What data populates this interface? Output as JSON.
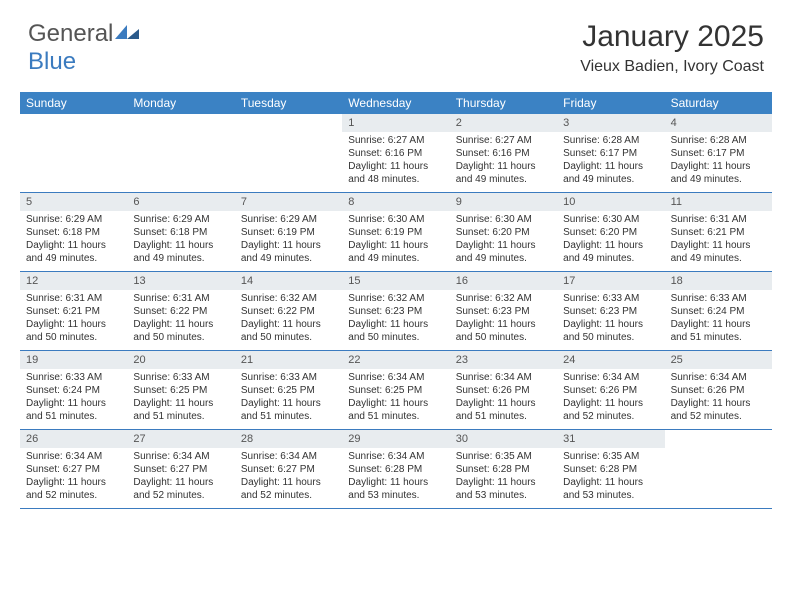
{
  "logo": {
    "textGray": "General",
    "textBlue": "Blue"
  },
  "title": "January 2025",
  "location": "Vieux Badien, Ivory Coast",
  "colors": {
    "headerBg": "#3b82c4",
    "headerText": "#ffffff",
    "cellHeaderBg": "#e8ecef",
    "borderColor": "#3b7bbf",
    "bodyText": "#333333",
    "logoGray": "#555555",
    "logoBlue": "#3b7bbf"
  },
  "dayNames": [
    "Sunday",
    "Monday",
    "Tuesday",
    "Wednesday",
    "Thursday",
    "Friday",
    "Saturday"
  ],
  "weeks": [
    [
      {
        "n": "",
        "empty": true
      },
      {
        "n": "",
        "empty": true
      },
      {
        "n": "",
        "empty": true
      },
      {
        "n": "1",
        "sr": "Sunrise: 6:27 AM",
        "ss": "Sunset: 6:16 PM",
        "d1": "Daylight: 11 hours",
        "d2": "and 48 minutes."
      },
      {
        "n": "2",
        "sr": "Sunrise: 6:27 AM",
        "ss": "Sunset: 6:16 PM",
        "d1": "Daylight: 11 hours",
        "d2": "and 49 minutes."
      },
      {
        "n": "3",
        "sr": "Sunrise: 6:28 AM",
        "ss": "Sunset: 6:17 PM",
        "d1": "Daylight: 11 hours",
        "d2": "and 49 minutes."
      },
      {
        "n": "4",
        "sr": "Sunrise: 6:28 AM",
        "ss": "Sunset: 6:17 PM",
        "d1": "Daylight: 11 hours",
        "d2": "and 49 minutes."
      }
    ],
    [
      {
        "n": "5",
        "sr": "Sunrise: 6:29 AM",
        "ss": "Sunset: 6:18 PM",
        "d1": "Daylight: 11 hours",
        "d2": "and 49 minutes."
      },
      {
        "n": "6",
        "sr": "Sunrise: 6:29 AM",
        "ss": "Sunset: 6:18 PM",
        "d1": "Daylight: 11 hours",
        "d2": "and 49 minutes."
      },
      {
        "n": "7",
        "sr": "Sunrise: 6:29 AM",
        "ss": "Sunset: 6:19 PM",
        "d1": "Daylight: 11 hours",
        "d2": "and 49 minutes."
      },
      {
        "n": "8",
        "sr": "Sunrise: 6:30 AM",
        "ss": "Sunset: 6:19 PM",
        "d1": "Daylight: 11 hours",
        "d2": "and 49 minutes."
      },
      {
        "n": "9",
        "sr": "Sunrise: 6:30 AM",
        "ss": "Sunset: 6:20 PM",
        "d1": "Daylight: 11 hours",
        "d2": "and 49 minutes."
      },
      {
        "n": "10",
        "sr": "Sunrise: 6:30 AM",
        "ss": "Sunset: 6:20 PM",
        "d1": "Daylight: 11 hours",
        "d2": "and 49 minutes."
      },
      {
        "n": "11",
        "sr": "Sunrise: 6:31 AM",
        "ss": "Sunset: 6:21 PM",
        "d1": "Daylight: 11 hours",
        "d2": "and 49 minutes."
      }
    ],
    [
      {
        "n": "12",
        "sr": "Sunrise: 6:31 AM",
        "ss": "Sunset: 6:21 PM",
        "d1": "Daylight: 11 hours",
        "d2": "and 50 minutes."
      },
      {
        "n": "13",
        "sr": "Sunrise: 6:31 AM",
        "ss": "Sunset: 6:22 PM",
        "d1": "Daylight: 11 hours",
        "d2": "and 50 minutes."
      },
      {
        "n": "14",
        "sr": "Sunrise: 6:32 AM",
        "ss": "Sunset: 6:22 PM",
        "d1": "Daylight: 11 hours",
        "d2": "and 50 minutes."
      },
      {
        "n": "15",
        "sr": "Sunrise: 6:32 AM",
        "ss": "Sunset: 6:23 PM",
        "d1": "Daylight: 11 hours",
        "d2": "and 50 minutes."
      },
      {
        "n": "16",
        "sr": "Sunrise: 6:32 AM",
        "ss": "Sunset: 6:23 PM",
        "d1": "Daylight: 11 hours",
        "d2": "and 50 minutes."
      },
      {
        "n": "17",
        "sr": "Sunrise: 6:33 AM",
        "ss": "Sunset: 6:23 PM",
        "d1": "Daylight: 11 hours",
        "d2": "and 50 minutes."
      },
      {
        "n": "18",
        "sr": "Sunrise: 6:33 AM",
        "ss": "Sunset: 6:24 PM",
        "d1": "Daylight: 11 hours",
        "d2": "and 51 minutes."
      }
    ],
    [
      {
        "n": "19",
        "sr": "Sunrise: 6:33 AM",
        "ss": "Sunset: 6:24 PM",
        "d1": "Daylight: 11 hours",
        "d2": "and 51 minutes."
      },
      {
        "n": "20",
        "sr": "Sunrise: 6:33 AM",
        "ss": "Sunset: 6:25 PM",
        "d1": "Daylight: 11 hours",
        "d2": "and 51 minutes."
      },
      {
        "n": "21",
        "sr": "Sunrise: 6:33 AM",
        "ss": "Sunset: 6:25 PM",
        "d1": "Daylight: 11 hours",
        "d2": "and 51 minutes."
      },
      {
        "n": "22",
        "sr": "Sunrise: 6:34 AM",
        "ss": "Sunset: 6:25 PM",
        "d1": "Daylight: 11 hours",
        "d2": "and 51 minutes."
      },
      {
        "n": "23",
        "sr": "Sunrise: 6:34 AM",
        "ss": "Sunset: 6:26 PM",
        "d1": "Daylight: 11 hours",
        "d2": "and 51 minutes."
      },
      {
        "n": "24",
        "sr": "Sunrise: 6:34 AM",
        "ss": "Sunset: 6:26 PM",
        "d1": "Daylight: 11 hours",
        "d2": "and 52 minutes."
      },
      {
        "n": "25",
        "sr": "Sunrise: 6:34 AM",
        "ss": "Sunset: 6:26 PM",
        "d1": "Daylight: 11 hours",
        "d2": "and 52 minutes."
      }
    ],
    [
      {
        "n": "26",
        "sr": "Sunrise: 6:34 AM",
        "ss": "Sunset: 6:27 PM",
        "d1": "Daylight: 11 hours",
        "d2": "and 52 minutes."
      },
      {
        "n": "27",
        "sr": "Sunrise: 6:34 AM",
        "ss": "Sunset: 6:27 PM",
        "d1": "Daylight: 11 hours",
        "d2": "and 52 minutes."
      },
      {
        "n": "28",
        "sr": "Sunrise: 6:34 AM",
        "ss": "Sunset: 6:27 PM",
        "d1": "Daylight: 11 hours",
        "d2": "and 52 minutes."
      },
      {
        "n": "29",
        "sr": "Sunrise: 6:34 AM",
        "ss": "Sunset: 6:28 PM",
        "d1": "Daylight: 11 hours",
        "d2": "and 53 minutes."
      },
      {
        "n": "30",
        "sr": "Sunrise: 6:35 AM",
        "ss": "Sunset: 6:28 PM",
        "d1": "Daylight: 11 hours",
        "d2": "and 53 minutes."
      },
      {
        "n": "31",
        "sr": "Sunrise: 6:35 AM",
        "ss": "Sunset: 6:28 PM",
        "d1": "Daylight: 11 hours",
        "d2": "and 53 minutes."
      },
      {
        "n": "",
        "empty": true
      }
    ]
  ]
}
